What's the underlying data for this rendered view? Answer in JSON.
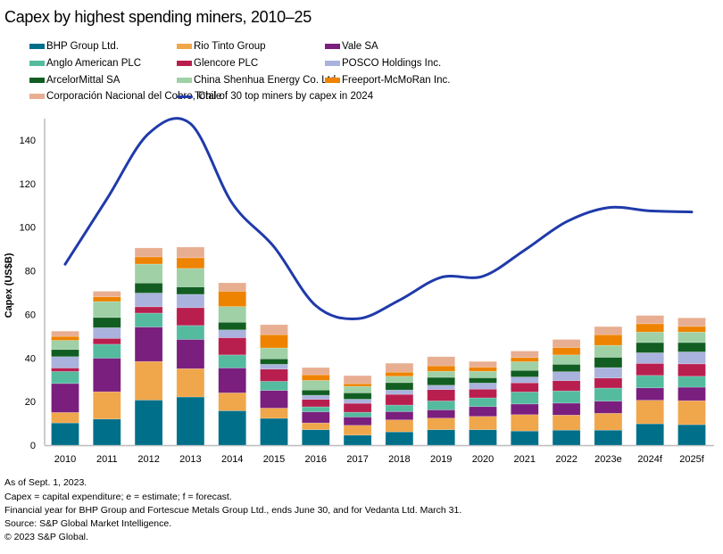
{
  "chart_data": {
    "type": "bar",
    "stacked": true,
    "title": "Capex by highest spending miners, 2010–25",
    "xlabel": "",
    "ylabel": "Capex (US$B)",
    "ylim": [
      0,
      150
    ],
    "yticks": [
      0,
      20,
      40,
      60,
      80,
      100,
      120,
      140
    ],
    "grid": false,
    "legend_position": "top",
    "categories": [
      "2010",
      "2011",
      "2012",
      "2013",
      "2014",
      "2015",
      "2016",
      "2017",
      "2018",
      "2019",
      "2020",
      "2021",
      "2022",
      "2023e",
      "2024f",
      "2025f"
    ],
    "series": [
      {
        "name": "BHP Group Ltd.",
        "color": "#006f8a",
        "values": [
          10.2,
          12.0,
          20.7,
          22.1,
          15.8,
          12.3,
          7.1,
          4.6,
          6.1,
          7.1,
          7.1,
          6.5,
          6.9,
          6.9,
          9.8,
          9.4
        ]
      },
      {
        "name": "Rio Tinto Group",
        "color": "#f0a64a",
        "values": [
          4.8,
          12.5,
          17.7,
          13.0,
          8.2,
          4.7,
          3.1,
          4.5,
          5.5,
          5.3,
          6.1,
          7.5,
          6.9,
          7.7,
          10.8,
          11.0
        ]
      },
      {
        "name": "Vale SA",
        "color": "#7a1f7e",
        "values": [
          13.3,
          15.4,
          15.8,
          13.4,
          11.4,
          8.1,
          5.1,
          3.8,
          3.8,
          3.8,
          4.5,
          4.9,
          5.5,
          5.6,
          5.7,
          6.2
        ]
      },
      {
        "name": "Anglo American PLC",
        "color": "#54bb9f",
        "values": [
          5.5,
          6.4,
          6.4,
          6.4,
          6.0,
          4.2,
          2.3,
          2.2,
          3.0,
          4.1,
          4.0,
          5.5,
          5.6,
          6.0,
          5.7,
          5.0
        ]
      },
      {
        "name": "Glencore PLC",
        "color": "#b81f4f",
        "values": [
          1.6,
          2.7,
          2.9,
          8.2,
          7.9,
          5.6,
          3.4,
          4.1,
          4.9,
          5.2,
          4.0,
          4.2,
          4.7,
          4.6,
          5.5,
          5.7
        ]
      },
      {
        "name": "POSCO Holdings Inc.",
        "color": "#a9b3dd",
        "values": [
          5.2,
          4.9,
          6.3,
          6.1,
          3.6,
          2.2,
          1.9,
          1.9,
          2.0,
          2.0,
          2.8,
          2.7,
          4.1,
          4.8,
          4.9,
          5.5
        ]
      },
      {
        "name": "ArcelorMittal SA",
        "color": "#125e22",
        "values": [
          3.3,
          4.7,
          4.6,
          3.4,
          3.5,
          2.5,
          2.4,
          2.9,
          3.4,
          3.6,
          2.4,
          3.0,
          3.4,
          4.7,
          4.7,
          4.3
        ]
      },
      {
        "name": "China Shenhua Energy Co. Ltd.",
        "color": "#9fd0a6",
        "values": [
          4.2,
          7.3,
          8.7,
          8.5,
          7.2,
          5.0,
          4.4,
          3.0,
          2.9,
          2.8,
          3.0,
          4.0,
          4.3,
          5.5,
          4.8,
          4.8
        ]
      },
      {
        "name": "Freeport-McMoRan Inc.",
        "color": "#ee8300",
        "values": [
          1.8,
          2.2,
          3.3,
          4.9,
          7.0,
          6.1,
          2.6,
          1.2,
          1.9,
          2.5,
          1.9,
          1.9,
          3.4,
          4.9,
          3.8,
          2.6
        ]
      },
      {
        "name": "Corporación Nacional del Cobre, Chile",
        "color": "#e8ae92",
        "values": [
          2.4,
          2.5,
          4.1,
          4.9,
          3.9,
          4.6,
          3.3,
          3.7,
          4.1,
          4.2,
          2.6,
          3.0,
          3.7,
          3.7,
          3.8,
          3.9
        ]
      }
    ],
    "line_series": {
      "name": "Total of 30 top miners by capex in 2024",
      "color": "#1f3aaa",
      "values": [
        83,
        113,
        143,
        147.5,
        111,
        91,
        64,
        58,
        66.5,
        77,
        77.5,
        89.5,
        102.5,
        109,
        107.5,
        107
      ]
    }
  },
  "footnotes": [
    "As of Sept. 1, 2023.",
    "Capex = capital expenditure; e = estimate; f = forecast.",
    "Financial year for BHP Group and Fortescue Metals Group Ltd., ends June 30, and for Vedanta Ltd. March 31.",
    "Source: S&P Global Market Intelligence.",
    "© 2023 S&P Global."
  ]
}
